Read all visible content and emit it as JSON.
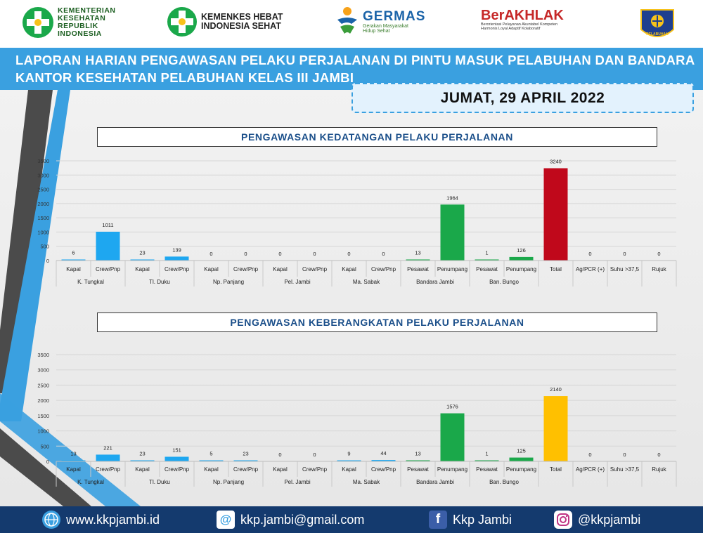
{
  "logos": {
    "kemenkes": [
      "KEMENTERIAN",
      "KESEHATAN",
      "REPUBLIK",
      "INDONESIA"
    ],
    "hebat": [
      "KEMENKES HEBAT",
      "INDONESIA SEHAT"
    ],
    "germas": {
      "name": "GERMAS",
      "tagline_1": "Gerakan Masyarakat",
      "tagline_2": "Hidup Sehat"
    },
    "akhlak": {
      "name": "BerAKHLAK",
      "tagline_1": "Berorientasi Pelayanan Akuntabel Kompeten",
      "tagline_2": "Harmonis Loyal Adaptif Kolaboratif"
    },
    "emblem_label": "PELABUHAN"
  },
  "header": {
    "title_line1": "LAPORAN HARIAN PENGAWASAN PELAKU PERJALANAN DI PINTU MASUK PELABUHAN DAN BANDARA",
    "title_line2": "KANTOR KESEHATAN PELABUHAN KELAS III JAMBI",
    "date": "JUMAT, 29 APRIL 2022"
  },
  "colors": {
    "banner": "#3aa0e0",
    "bar_blue": "#1ea7f0",
    "bar_green": "#1aa84a",
    "bar_red": "#c0081b",
    "bar_yellow": "#ffc000",
    "footer": "#143a6e"
  },
  "chart_data": [
    {
      "type": "bar",
      "title": "PENGAWASAN KEDATANGAN PELAKU PERJALANAN",
      "ylim": [
        0,
        3500
      ],
      "yticks": [
        0,
        500,
        1000,
        1500,
        2000,
        2500,
        3000,
        3500
      ],
      "grid": true,
      "categories": [
        "Kapal",
        "Crew/Pnp",
        "Kapal",
        "Crew/Pnp",
        "Kapal",
        "Crew/Pnp",
        "Kapal",
        "Crew/Pnp",
        "Kapal",
        "Crew/Pnp",
        "Pesawat",
        "Penumpang",
        "Pesawat",
        "Penumpang",
        "Total",
        "Ag/PCR (+)",
        "Suhu >37,5",
        "Rujuk"
      ],
      "groups": [
        "K. Tungkal",
        "Tl. Duku",
        "Np. Panjang",
        "Pel. Jambi",
        "Ma. Sabak",
        "Bandara Jambi",
        "Ban. Bungo"
      ],
      "values": [
        6,
        1011,
        23,
        139,
        0,
        0,
        0,
        0,
        0,
        0,
        13,
        1964,
        1,
        126,
        3240,
        0,
        0,
        0
      ],
      "labels": [
        "6",
        "1011",
        "23",
        "139",
        "0",
        "0",
        "0",
        "0",
        "0",
        "0",
        "13",
        "1964",
        "1",
        "126",
        "3240",
        "0",
        "0",
        "0"
      ],
      "bar_colors": [
        "blue",
        "blue",
        "blue",
        "blue",
        "blue",
        "blue",
        "blue",
        "blue",
        "blue",
        "blue",
        "green",
        "green",
        "green",
        "green",
        "red",
        "blue",
        "blue",
        "blue"
      ]
    },
    {
      "type": "bar",
      "title": "PENGAWASAN KEBERANGKATAN PELAKU PERJALANAN",
      "ylim": [
        0,
        3500
      ],
      "yticks": [
        0,
        500,
        1000,
        1500,
        2000,
        2500,
        3000,
        3500
      ],
      "grid": true,
      "categories": [
        "Kapal",
        "Crew/Pnp",
        "Kapal",
        "Crew/Pnp",
        "Kapal",
        "Crew/Pnp",
        "Kapal",
        "Crew/Pnp",
        "Kapal",
        "Crew/Pnp",
        "Pesawat",
        "Penumpang",
        "Pesawat",
        "Penumpang",
        "Total",
        "Ag/PCR (+)",
        "Suhu >37,5",
        "Rujuk"
      ],
      "groups": [
        "K. Tungkal",
        "Tl. Duku",
        "Np. Panjang",
        "Pel. Jambi",
        "Ma. Sabak",
        "Bandara Jambi",
        "Ban. Bungo"
      ],
      "values": [
        13,
        221,
        23,
        151,
        5,
        23,
        0,
        0,
        9,
        44,
        13,
        1576,
        1,
        125,
        2140,
        0,
        0,
        0
      ],
      "labels": [
        "13",
        "221",
        "23",
        "151",
        "5",
        "23",
        "0",
        "0",
        "9",
        "44",
        "13",
        "1576",
        "1",
        "125",
        "2140",
        "0",
        "0",
        "0"
      ],
      "bar_colors": [
        "blue",
        "blue",
        "blue",
        "blue",
        "blue",
        "blue",
        "blue",
        "blue",
        "blue",
        "blue",
        "green",
        "green",
        "green",
        "green",
        "yellow",
        "blue",
        "blue",
        "blue"
      ]
    }
  ],
  "footer": {
    "website": "www.kkpjambi.id",
    "email": "kkp.jambi@gmail.com",
    "facebook": "Kkp Jambi",
    "instagram": "@kkpjambi",
    "icons": [
      "globe-icon",
      "email-icon",
      "facebook-icon",
      "instagram-icon"
    ]
  }
}
